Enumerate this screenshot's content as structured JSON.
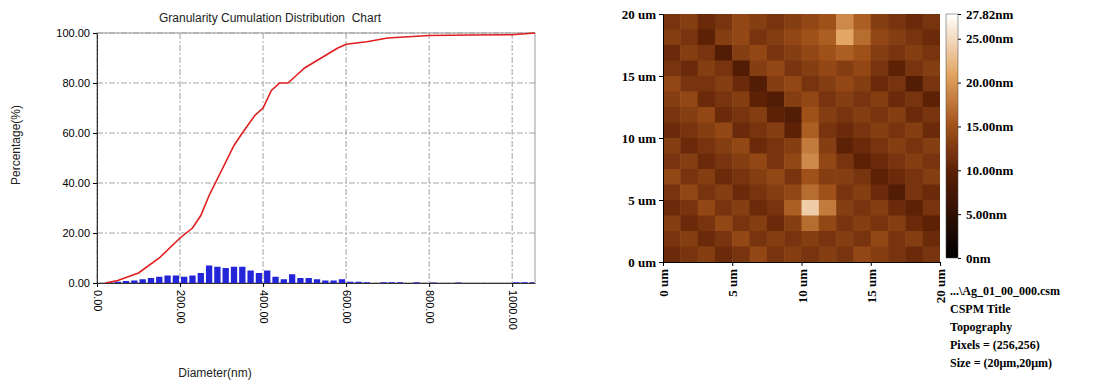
{
  "chart_data": [
    {
      "type": "line",
      "title": "Granularity Cumulation Distribution  Chart",
      "x_label": "Diameter(nm)",
      "y_label": "Percentage(%)",
      "xlim": [
        0,
        1055
      ],
      "xticks": [
        {
          "value": 0,
          "label": "0.00"
        },
        {
          "value": 200,
          "label": "200.00"
        },
        {
          "value": 400,
          "label": "400.00"
        },
        {
          "value": 600,
          "label": "600.00"
        },
        {
          "value": 800,
          "label": "800.00"
        },
        {
          "value": 1000,
          "label": "1000.00"
        }
      ],
      "ylim": [
        0,
        100
      ],
      "yticks": [
        {
          "value": 0,
          "label": "0.00"
        },
        {
          "value": 20,
          "label": "20.00"
        },
        {
          "value": 40,
          "label": "40.00"
        },
        {
          "value": 60,
          "label": "60.00"
        },
        {
          "value": 80,
          "label": "80.00"
        },
        {
          "value": 100,
          "label": "100.00"
        }
      ],
      "grid": true,
      "series": [
        {
          "type": "histogram",
          "color": "#2424d8",
          "bins": [
            0,
            20,
            40,
            60,
            80,
            100,
            120,
            140,
            160,
            180,
            200,
            220,
            240,
            260,
            280,
            300,
            320,
            340,
            360,
            380,
            400,
            420,
            440,
            460,
            480,
            500,
            520,
            540,
            560,
            580,
            600,
            620,
            640,
            660,
            680,
            700,
            720,
            740,
            760,
            780,
            800,
            820,
            840,
            860,
            880,
            900,
            920,
            940,
            960,
            980,
            1000,
            1020,
            1040,
            1055
          ],
          "values": [
            0,
            0.3,
            0.5,
            0.8,
            1,
            1.5,
            2,
            2.5,
            3,
            3,
            2.5,
            3,
            4,
            7,
            6.5,
            6,
            6.5,
            6.5,
            5,
            4,
            5,
            2.5,
            1.5,
            3.5,
            2,
            2,
            1.5,
            1,
            1,
            1.5,
            0.5,
            0.5,
            0.3,
            0,
            0.3,
            0.3,
            0.3,
            0,
            0.3,
            0,
            0.2,
            0,
            0,
            0.2,
            0,
            0,
            0,
            0,
            0,
            0,
            0.3,
            0.3,
            0.3
          ]
        },
        {
          "type": "line",
          "color": "#e01e1e",
          "x": [
            20,
            50,
            100,
            150,
            200,
            230,
            250,
            270,
            300,
            330,
            350,
            380,
            400,
            420,
            440,
            460,
            480,
            500,
            530,
            560,
            580,
            600,
            650,
            700,
            750,
            800,
            900,
            1000,
            1055
          ],
          "values": [
            0,
            1,
            4,
            10,
            18,
            22,
            27,
            35,
            45,
            55,
            60,
            67,
            70,
            77,
            80,
            80,
            83,
            86,
            89,
            92,
            94,
            95.5,
            96.5,
            98,
            98.5,
            99,
            99.2,
            99.3,
            100
          ]
        }
      ]
    },
    {
      "type": "heatmap",
      "xlim": [
        0,
        20
      ],
      "xticks": [
        {
          "value": 0,
          "label": "0 um"
        },
        {
          "value": 5,
          "label": "5 um"
        },
        {
          "value": 10,
          "label": "10 um"
        },
        {
          "value": 15,
          "label": "15 um"
        },
        {
          "value": 20,
          "label": "20 um"
        }
      ],
      "ylim": [
        0,
        20
      ],
      "yticks": [
        {
          "value": 0,
          "label": "0 um"
        },
        {
          "value": 5,
          "label": "5 um"
        },
        {
          "value": 10,
          "label": "10 um"
        },
        {
          "value": 15,
          "label": "15 um"
        },
        {
          "value": 20,
          "label": "20 um"
        }
      ],
      "cells": [
        [
          12,
          13,
          11,
          12,
          14,
          13,
          12,
          13,
          14,
          15,
          19,
          16,
          13,
          12,
          11,
          12
        ],
        [
          13,
          12,
          10,
          13,
          14,
          12,
          13,
          14,
          15,
          16,
          21,
          17,
          14,
          13,
          12,
          11
        ],
        [
          11,
          13,
          12,
          9,
          13,
          14,
          12,
          13,
          14,
          15,
          16,
          15,
          13,
          12,
          13,
          12
        ],
        [
          12,
          11,
          13,
          12,
          9,
          13,
          14,
          12,
          13,
          14,
          13,
          14,
          12,
          10,
          12,
          13
        ],
        [
          14,
          12,
          12,
          13,
          11,
          9,
          13,
          14,
          12,
          13,
          14,
          13,
          11,
          12,
          9,
          12
        ],
        [
          13,
          14,
          11,
          12,
          13,
          10,
          9,
          13,
          14,
          12,
          13,
          12,
          13,
          11,
          12,
          10
        ],
        [
          12,
          13,
          14,
          11,
          12,
          13,
          10,
          9,
          15,
          13,
          12,
          13,
          12,
          13,
          11,
          12
        ],
        [
          11,
          12,
          13,
          14,
          11,
          12,
          13,
          10,
          16,
          12,
          11,
          12,
          13,
          12,
          13,
          11
        ],
        [
          13,
          11,
          12,
          13,
          14,
          11,
          12,
          13,
          18,
          13,
          10,
          11,
          12,
          13,
          12,
          13
        ],
        [
          12,
          13,
          11,
          12,
          13,
          14,
          12,
          14,
          19,
          14,
          12,
          10,
          11,
          12,
          13,
          12
        ],
        [
          14,
          12,
          13,
          11,
          12,
          13,
          14,
          12,
          15,
          13,
          13,
          12,
          10,
          11,
          12,
          13
        ],
        [
          12,
          14,
          12,
          13,
          11,
          12,
          13,
          14,
          17,
          15,
          12,
          13,
          11,
          9,
          12,
          11
        ],
        [
          11,
          12,
          14,
          12,
          13,
          11,
          12,
          16,
          24,
          18,
          13,
          12,
          13,
          11,
          10,
          12
        ],
        [
          13,
          11,
          12,
          14,
          12,
          13,
          11,
          13,
          17,
          14,
          12,
          13,
          12,
          13,
          11,
          10
        ],
        [
          12,
          13,
          11,
          12,
          14,
          12,
          13,
          12,
          13,
          12,
          13,
          12,
          14,
          12,
          13,
          11
        ],
        [
          11,
          12,
          13,
          11,
          12,
          14,
          12,
          13,
          12,
          13,
          12,
          14,
          13,
          12,
          11,
          12
        ]
      ],
      "color_range": [
        0,
        27.82
      ],
      "color_ticks": [
        {
          "value": 0,
          "label": "0nm"
        },
        {
          "value": 5,
          "label": "5.00nm"
        },
        {
          "value": 10,
          "label": "10.00nm"
        },
        {
          "value": 15,
          "label": "15.00nm"
        },
        {
          "value": 20,
          "label": "20.00nm"
        },
        {
          "value": 25,
          "label": "25.00nm"
        },
        {
          "value": 27.82,
          "label": "27.82nm"
        }
      ],
      "annotations": [
        "...\\Ag_01_00_000.csm",
        "CSPM Title",
        "Topography",
        "Pixels = (256,256)",
        "Size = (20μm,20μm)"
      ]
    }
  ]
}
